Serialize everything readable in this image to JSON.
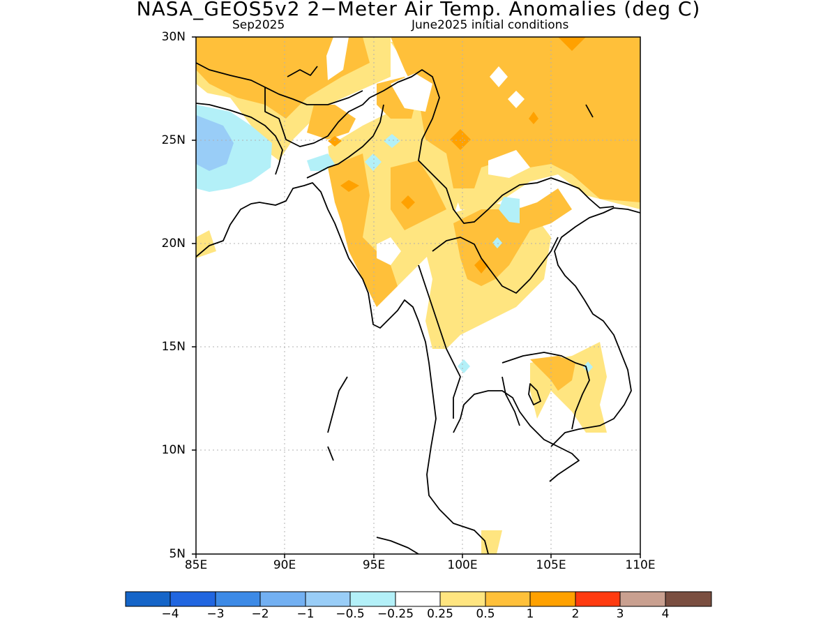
{
  "title": "NASA_GEOS5v2 2−Meter Air Temp. Anomalies (deg C)",
  "valid_month": "Sep2025",
  "init_conditions": "June2025 initial conditions",
  "lat_ticks": [
    "30N",
    "25N",
    "20N",
    "15N",
    "10N",
    "5N"
  ],
  "lon_ticks": [
    "85E",
    "90E",
    "95E",
    "100E",
    "105E",
    "110E"
  ],
  "colorbar": {
    "colors": [
      "#1565c8",
      "#2166e0",
      "#3d8ae6",
      "#73b0f2",
      "#99cdf7",
      "#b3f0f8",
      "#ffffff",
      "#ffe580",
      "#ffc03a",
      "#ffa100",
      "#ff3b10",
      "#c9a090",
      "#7a4e40"
    ],
    "labels": [
      "−4",
      "−3",
      "−2",
      "−1",
      "−0.5",
      "−0.25",
      "0.25",
      "0.5",
      "1",
      "2",
      "3",
      "4"
    ]
  }
}
